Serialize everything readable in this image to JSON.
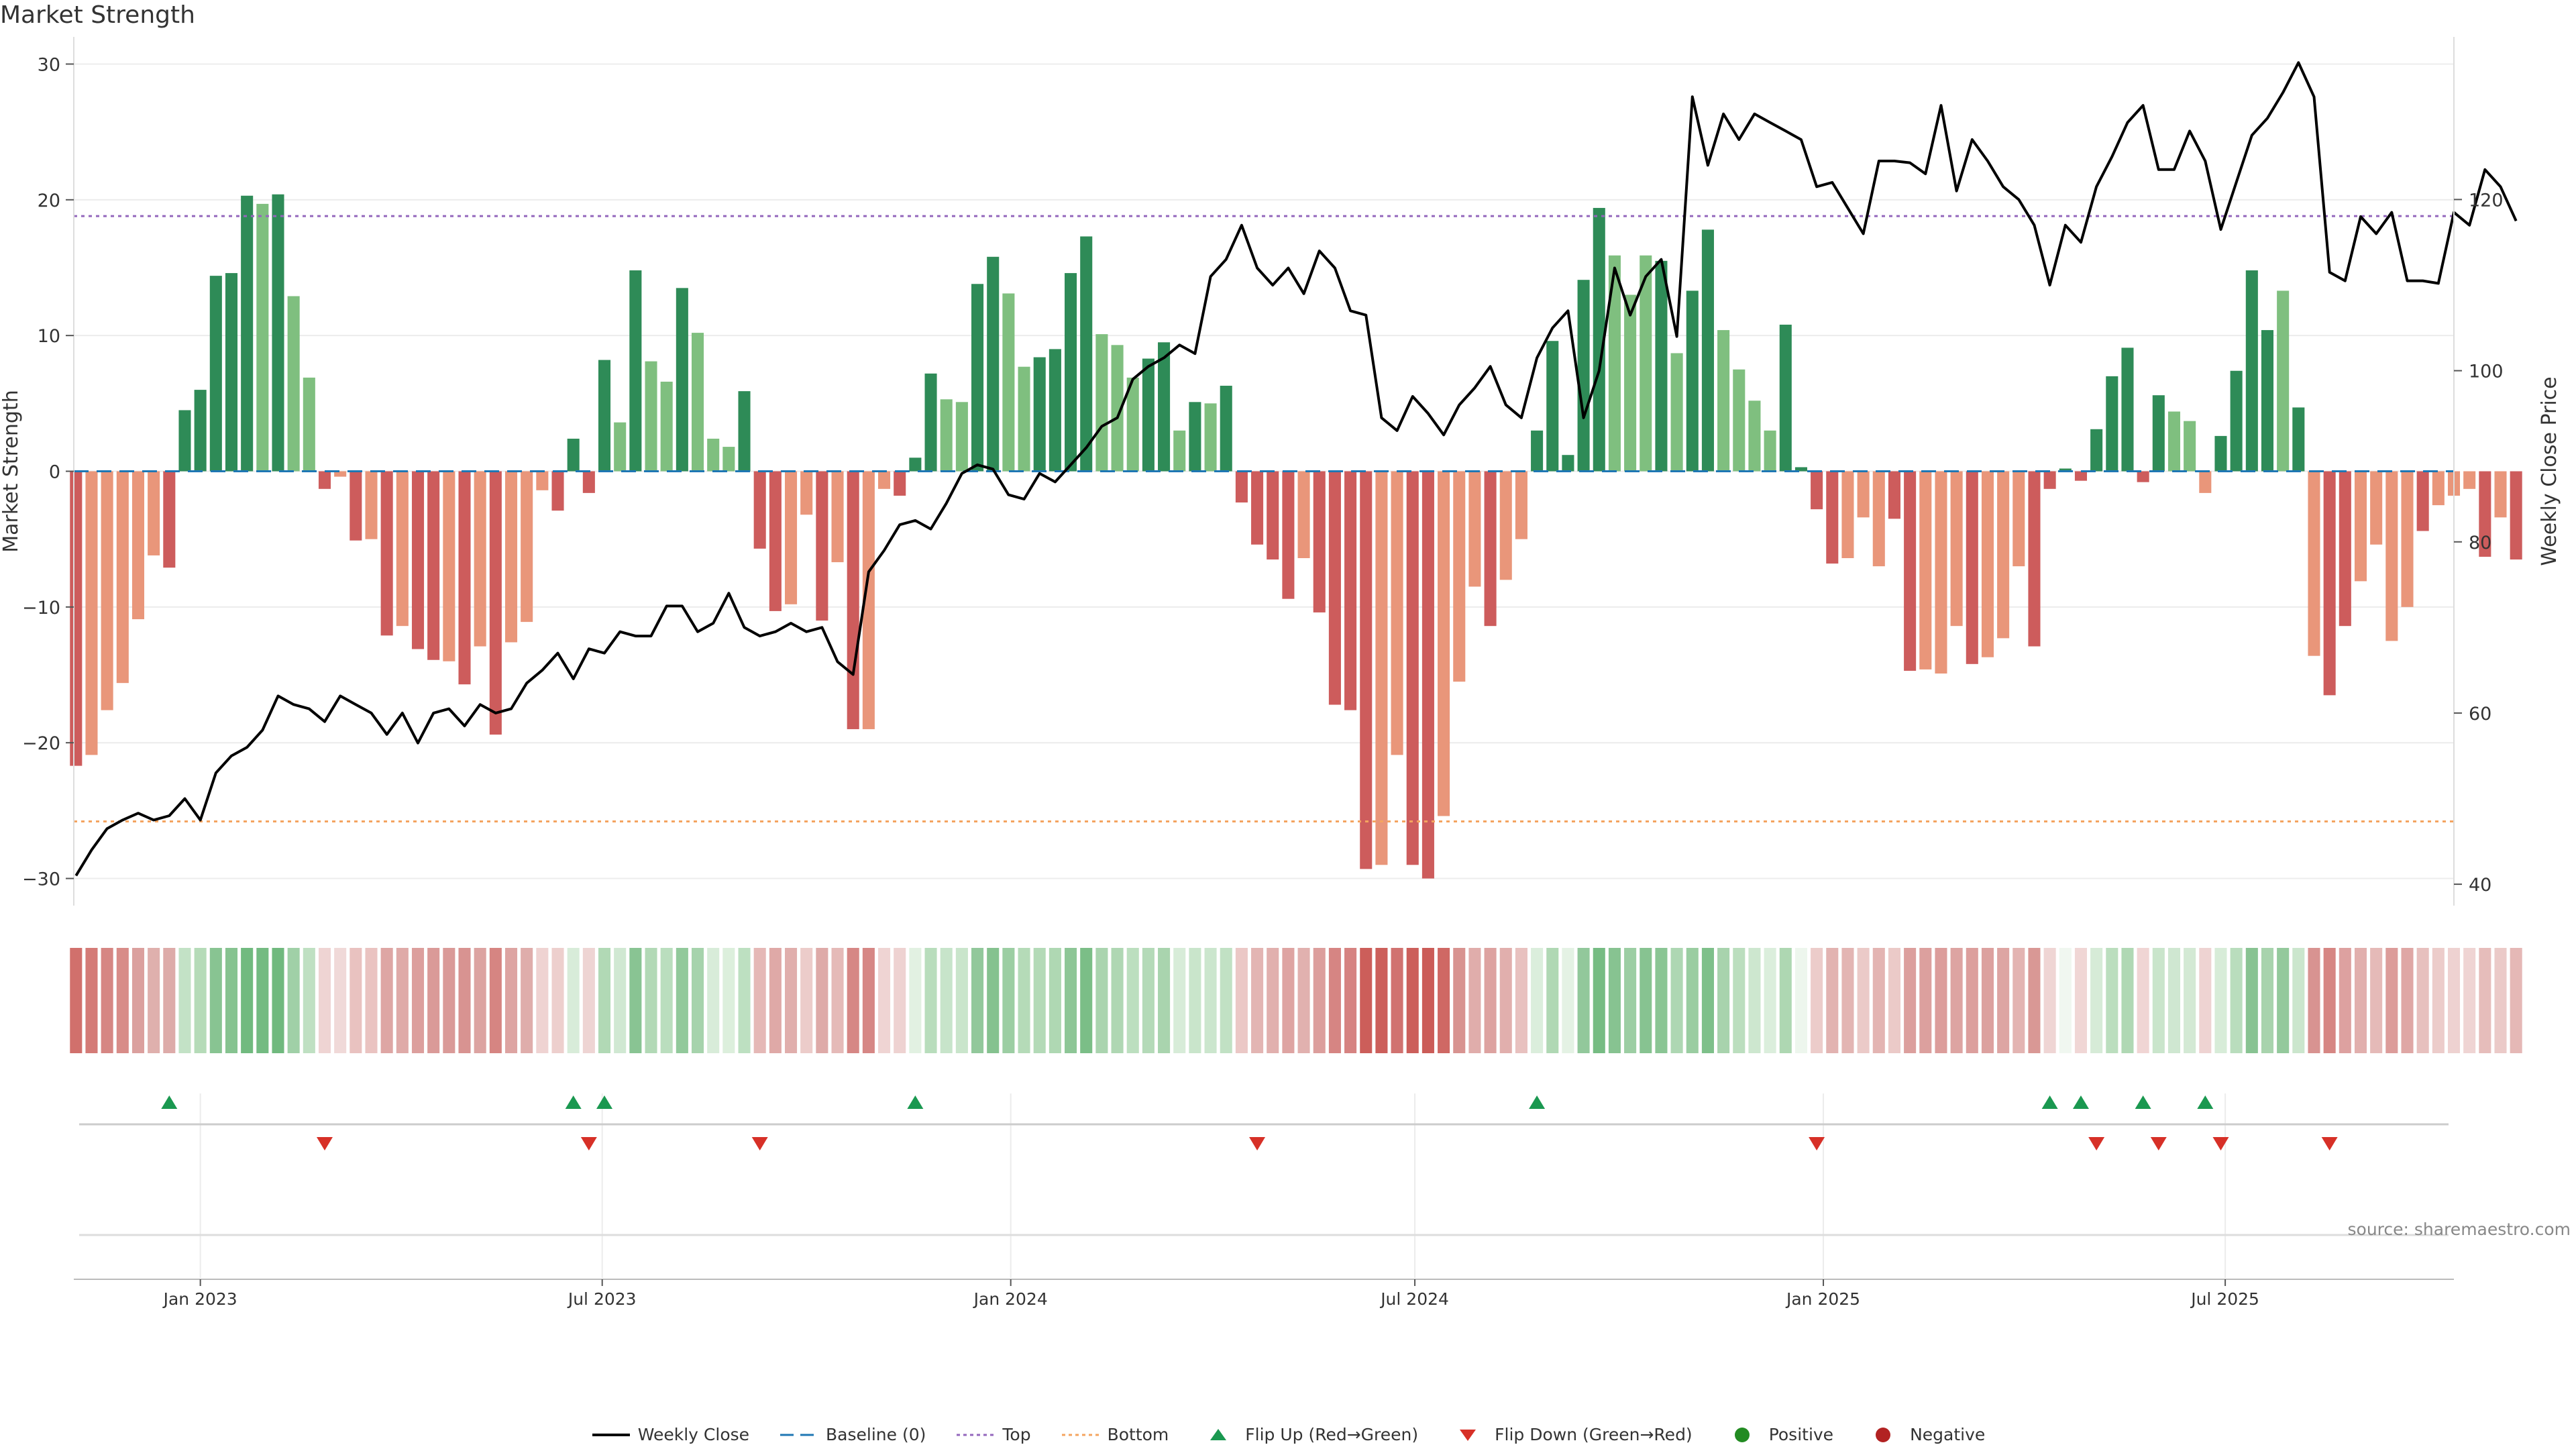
{
  "title": "Market Strength",
  "source": "source: sharemaestro.com",
  "colors": {
    "green_dark": "#2e8b57",
    "green_light": "#7fbf7f",
    "red_dark": "#cd5c5c",
    "red_light": "#e9967a",
    "price_line": "#000000",
    "baseline": "#1f77b4",
    "top_line": "#9467bd",
    "bottom_line": "#f4a460",
    "flip_up": "#1a9850",
    "flip_down": "#d73027",
    "positive_dot": "#228b22",
    "negative_dot": "#b22222"
  },
  "chart_data": {
    "type": "bar",
    "ylabel": "Market Strength",
    "y2label": "Weekly Close Price",
    "ylim": [
      -32,
      32
    ],
    "y2lim": [
      37.5,
      139
    ],
    "yticks": [
      -30,
      -20,
      -10,
      0,
      10,
      20,
      30
    ],
    "y2ticks": [
      40,
      60,
      80,
      100,
      120
    ],
    "x_range": [
      "2022-11-05",
      "2025-10-12"
    ],
    "xticks": [
      {
        "date": "2023-01-01",
        "label": "Jan 2023"
      },
      {
        "date": "2023-07-01",
        "label": "Jul 2023"
      },
      {
        "date": "2024-01-01",
        "label": "Jan 2024"
      },
      {
        "date": "2024-07-01",
        "label": "Jul 2024"
      },
      {
        "date": "2025-01-01",
        "label": "Jan 2025"
      },
      {
        "date": "2025-07-01",
        "label": "Jul 2025"
      }
    ],
    "start_week": "2022-11-06",
    "top_level": 18.8,
    "bottom_level": -25.8,
    "strength": [
      -21.7,
      -20.9,
      -17.6,
      -15.6,
      -10.9,
      -6.2,
      -7.1,
      4.5,
      6.0,
      14.4,
      14.6,
      20.3,
      19.7,
      20.4,
      12.9,
      6.9,
      -1.3,
      -0.4,
      -5.1,
      -5.0,
      -12.1,
      -11.4,
      -13.1,
      -13.9,
      -14.0,
      -15.7,
      -12.9,
      -19.4,
      -12.6,
      -11.1,
      -1.4,
      -2.9,
      2.4,
      -1.6,
      8.2,
      3.6,
      14.8,
      8.1,
      6.6,
      13.5,
      10.2,
      2.4,
      1.8,
      5.9,
      -5.7,
      -10.3,
      -9.8,
      -3.2,
      -11.0,
      -6.7,
      -19.0,
      -19.0,
      -1.3,
      -1.8,
      1.0,
      7.2,
      5.3,
      5.1,
      13.8,
      15.8,
      13.1,
      7.7,
      8.4,
      9.0,
      14.6,
      17.3,
      10.1,
      9.3,
      6.9,
      8.3,
      9.5,
      3.0,
      5.1,
      5.0,
      6.3,
      -2.3,
      -5.4,
      -6.5,
      -9.4,
      -6.4,
      -10.4,
      -17.2,
      -17.6,
      -29.3,
      -29.0,
      -20.9,
      -29.0,
      -30.0,
      -25.4,
      -15.5,
      -8.5,
      -11.4,
      -8.0,
      -5.0,
      3.0,
      9.6,
      1.2,
      14.1,
      19.4,
      15.9,
      13.0,
      15.9,
      15.5,
      8.7,
      13.3,
      17.8,
      10.4,
      7.5,
      5.2,
      3.0,
      10.8,
      0.3,
      -2.8,
      -6.8,
      -6.4,
      -3.4,
      -7.0,
      -3.5,
      -14.7,
      -14.6,
      -14.9,
      -11.4,
      -14.2,
      -13.7,
      -12.3,
      -7.0,
      -12.9,
      -1.3,
      0.2,
      -0.7,
      3.1,
      7.0,
      9.1,
      -0.8,
      5.6,
      4.4,
      3.7,
      -1.6,
      2.6,
      7.4,
      14.8,
      10.4,
      13.3,
      4.7,
      -13.6,
      -16.5,
      -11.4,
      -8.1,
      -5.4,
      -12.5,
      -10.0,
      -4.4,
      -2.5,
      -1.8,
      -1.3,
      -6.3,
      -3.4,
      -6.5
    ],
    "strength_shade": [
      "d",
      "l",
      "l",
      "l",
      "l",
      "l",
      "d",
      "d",
      "d",
      "d",
      "d",
      "d",
      "l",
      "d",
      "l",
      "l",
      "d",
      "l",
      "d",
      "l",
      "d",
      "l",
      "d",
      "d",
      "l",
      "d",
      "l",
      "d",
      "l",
      "l",
      "l",
      "d",
      "d",
      "d",
      "d",
      "l",
      "d",
      "l",
      "l",
      "d",
      "l",
      "l",
      "l",
      "d",
      "d",
      "d",
      "l",
      "l",
      "d",
      "l",
      "d",
      "l",
      "l",
      "d",
      "d",
      "d",
      "l",
      "l",
      "d",
      "d",
      "l",
      "l",
      "d",
      "d",
      "d",
      "d",
      "l",
      "l",
      "l",
      "d",
      "d",
      "l",
      "d",
      "l",
      "d",
      "d",
      "d",
      "d",
      "d",
      "l",
      "d",
      "d",
      "d",
      "d",
      "l",
      "l",
      "d",
      "d",
      "l",
      "l",
      "l",
      "d",
      "l",
      "l",
      "d",
      "d",
      "d",
      "d",
      "d",
      "l",
      "l",
      "l",
      "d",
      "l",
      "d",
      "d",
      "l",
      "l",
      "l",
      "l",
      "d",
      "d",
      "d",
      "d",
      "l",
      "l",
      "l",
      "d",
      "d",
      "l",
      "l",
      "l",
      "d",
      "l",
      "l",
      "l",
      "d",
      "d",
      "d",
      "d",
      "d",
      "d",
      "d",
      "d",
      "d",
      "l",
      "l",
      "l",
      "d",
      "d",
      "d",
      "d",
      "l",
      "d",
      "l",
      "d",
      "d",
      "l",
      "l",
      "l",
      "l",
      "d",
      "l",
      "l",
      "l",
      "d",
      "l",
      "d",
      "d"
    ],
    "price": [
      41,
      44,
      46.5,
      47.5,
      48.3,
      47.5,
      48,
      50,
      47.5,
      53,
      55,
      56,
      58,
      62,
      61,
      60.5,
      59,
      62,
      61,
      60,
      57.5,
      60,
      56.5,
      60,
      60.5,
      58.5,
      61,
      60,
      60.5,
      63.5,
      65,
      67,
      64,
      67.5,
      67,
      69.5,
      69,
      69,
      72.5,
      72.5,
      69.5,
      70.5,
      74,
      70,
      69,
      69.5,
      70.5,
      69.5,
      70,
      66,
      64.5,
      76.5,
      79,
      82,
      82.5,
      81.5,
      84.5,
      88,
      89,
      88.5,
      85.5,
      85,
      88,
      87,
      89,
      91,
      93.5,
      94.5,
      99,
      100.5,
      101.5,
      103,
      102,
      111,
      113,
      117,
      112,
      110,
      112,
      109,
      114,
      112,
      107,
      106.5,
      94.5,
      93,
      97,
      95,
      92.5,
      96,
      98,
      100.5,
      96,
      94.5,
      101.5,
      105,
      107,
      94.5,
      100,
      112,
      106.5,
      111,
      113,
      104,
      132,
      124,
      130,
      127,
      130,
      129,
      128,
      127,
      121.5,
      122,
      119,
      116,
      124.5,
      124.5,
      124.3,
      123,
      131,
      121,
      127,
      124.5,
      121.5,
      120,
      117,
      110,
      117,
      115,
      121.5,
      125,
      129,
      131,
      123.5,
      123.5,
      128,
      124.5,
      116.5,
      122,
      127.5,
      129.5,
      132.5,
      136,
      132,
      111.5,
      110.5,
      118,
      116,
      118.5,
      110.5,
      110.5,
      110.2,
      118.5,
      117,
      123.5,
      121.5,
      117.5
    ],
    "heat_colors": [
      "#d1706c",
      "#d47b77",
      "#d68683",
      "#d88c88",
      "#dba09e",
      "#dfb0ad",
      "#ddaba9",
      "#c3e2c6",
      "#b5dbb8",
      "#88c492",
      "#86c390",
      "#71ba7f",
      "#74bb82",
      "#70b97e",
      "#a0d0a7",
      "#bfe0c2",
      "#efd4d3",
      "#f0d9d8",
      "#e9c2c0",
      "#eac3c1",
      "#dea6a4",
      "#dfaaa8",
      "#dc9f9d",
      "#da9a98",
      "#da9a98",
      "#d89391",
      "#dca3a1",
      "#d68582",
      "#dda4a2",
      "#dfadab",
      "#efd3d2",
      "#edcfcd",
      "#d8ecd9",
      "#eed4d3",
      "#b1d9b5",
      "#d0e8d2",
      "#89c493",
      "#b2d9b6",
      "#badebe",
      "#92c99b",
      "#a6d3ac",
      "#d8ecd9",
      "#dcefdc",
      "#bde0c1",
      "#e5b8b6",
      "#dfa9a7",
      "#e0aeac",
      "#ecccca",
      "#deaaa8",
      "#e5bab8",
      "#d68785",
      "#d68785",
      "#efd4d3",
      "#eed2d1",
      "#e2f1e2",
      "#b8ddbc",
      "#c7e4ca",
      "#c9e5cb",
      "#92c89b",
      "#85c28f",
      "#9ccea3",
      "#b5dbb8",
      "#b3dab7",
      "#afd8b3",
      "#8dc696",
      "#7bbe87",
      "#aad4af",
      "#afd7b3",
      "#bcdfbf",
      "#b4dab8",
      "#a9d4ae",
      "#d7ecd8",
      "#c9e5cb",
      "#cbe6cd",
      "#c1e1c4",
      "#ebc8c6",
      "#e3b5b3",
      "#e1b0ae",
      "#dea4a2",
      "#e1b1af",
      "#dc9e9c",
      "#d68583",
      "#d68381",
      "#cc5e5a",
      "#cc5f5b",
      "#d17270",
      "#cc5f5b",
      "#cb5c58",
      "#cf6864",
      "#d89390",
      "#e0adab",
      "#dda2a0",
      "#e1afad",
      "#e8c1bf",
      "#dbeedc",
      "#b0d8b4",
      "#e4f2e4",
      "#92c89b",
      "#76bc83",
      "#87c391",
      "#9ccea3",
      "#87c391",
      "#8ac594",
      "#aed7b3",
      "#9acda1",
      "#7ec08a",
      "#a8d3ad",
      "#bbdebe",
      "#cde7cf",
      "#dbeedc",
      "#aed7b2",
      "#edf6ed",
      "#ecccca",
      "#e2b3b1",
      "#e3b5b3",
      "#ebcac8",
      "#e3b4b2",
      "#ebcac8",
      "#dc9f9d",
      "#dca09e",
      "#dc9d9b",
      "#dda4a2",
      "#dc9f9d",
      "#dca19f",
      "#dda5a3",
      "#e3b4b2",
      "#d99895",
      "#efd5d4",
      "#f0f7f0",
      "#f0d6d5",
      "#d6ebd7",
      "#bbdebe",
      "#b0d8b4",
      "#f0d5d4",
      "#c9e5cb",
      "#cfe7d1",
      "#d3e9d4",
      "#eed3d2",
      "#d7ecd8",
      "#b9ddbd",
      "#88c392",
      "#a8d3ad",
      "#94c99c",
      "#cbe6cd",
      "#d89391",
      "#d68683",
      "#dda1a0",
      "#e1afad",
      "#e5bab8",
      "#dc9c9a",
      "#dfa7a5",
      "#e7c0be",
      "#ecccca",
      "#eed2d1",
      "#efd4d3",
      "#e6bdbb",
      "#ebcac8",
      "#e5b8b6"
    ],
    "flip_up_dates": [
      "2022-12-18",
      "2023-06-18",
      "2023-07-02",
      "2023-11-19",
      "2024-08-25",
      "2025-04-13",
      "2025-04-27",
      "2025-05-25",
      "2025-06-22"
    ],
    "flip_down_dates": [
      "2023-02-26",
      "2023-06-25",
      "2023-09-10",
      "2024-04-21",
      "2024-12-29",
      "2025-05-04",
      "2025-06-01",
      "2025-06-29",
      "2025-08-17"
    ],
    "legend": [
      {
        "key": "weekly_close",
        "label": "Weekly Close"
      },
      {
        "key": "baseline",
        "label": "Baseline (0)"
      },
      {
        "key": "top",
        "label": "Top"
      },
      {
        "key": "bottom",
        "label": "Bottom"
      },
      {
        "key": "flip_up",
        "label": "Flip Up (Red→Green)"
      },
      {
        "key": "flip_down",
        "label": "Flip Down (Green→Red)"
      },
      {
        "key": "positive",
        "label": "Positive"
      },
      {
        "key": "negative",
        "label": "Negative"
      }
    ]
  }
}
